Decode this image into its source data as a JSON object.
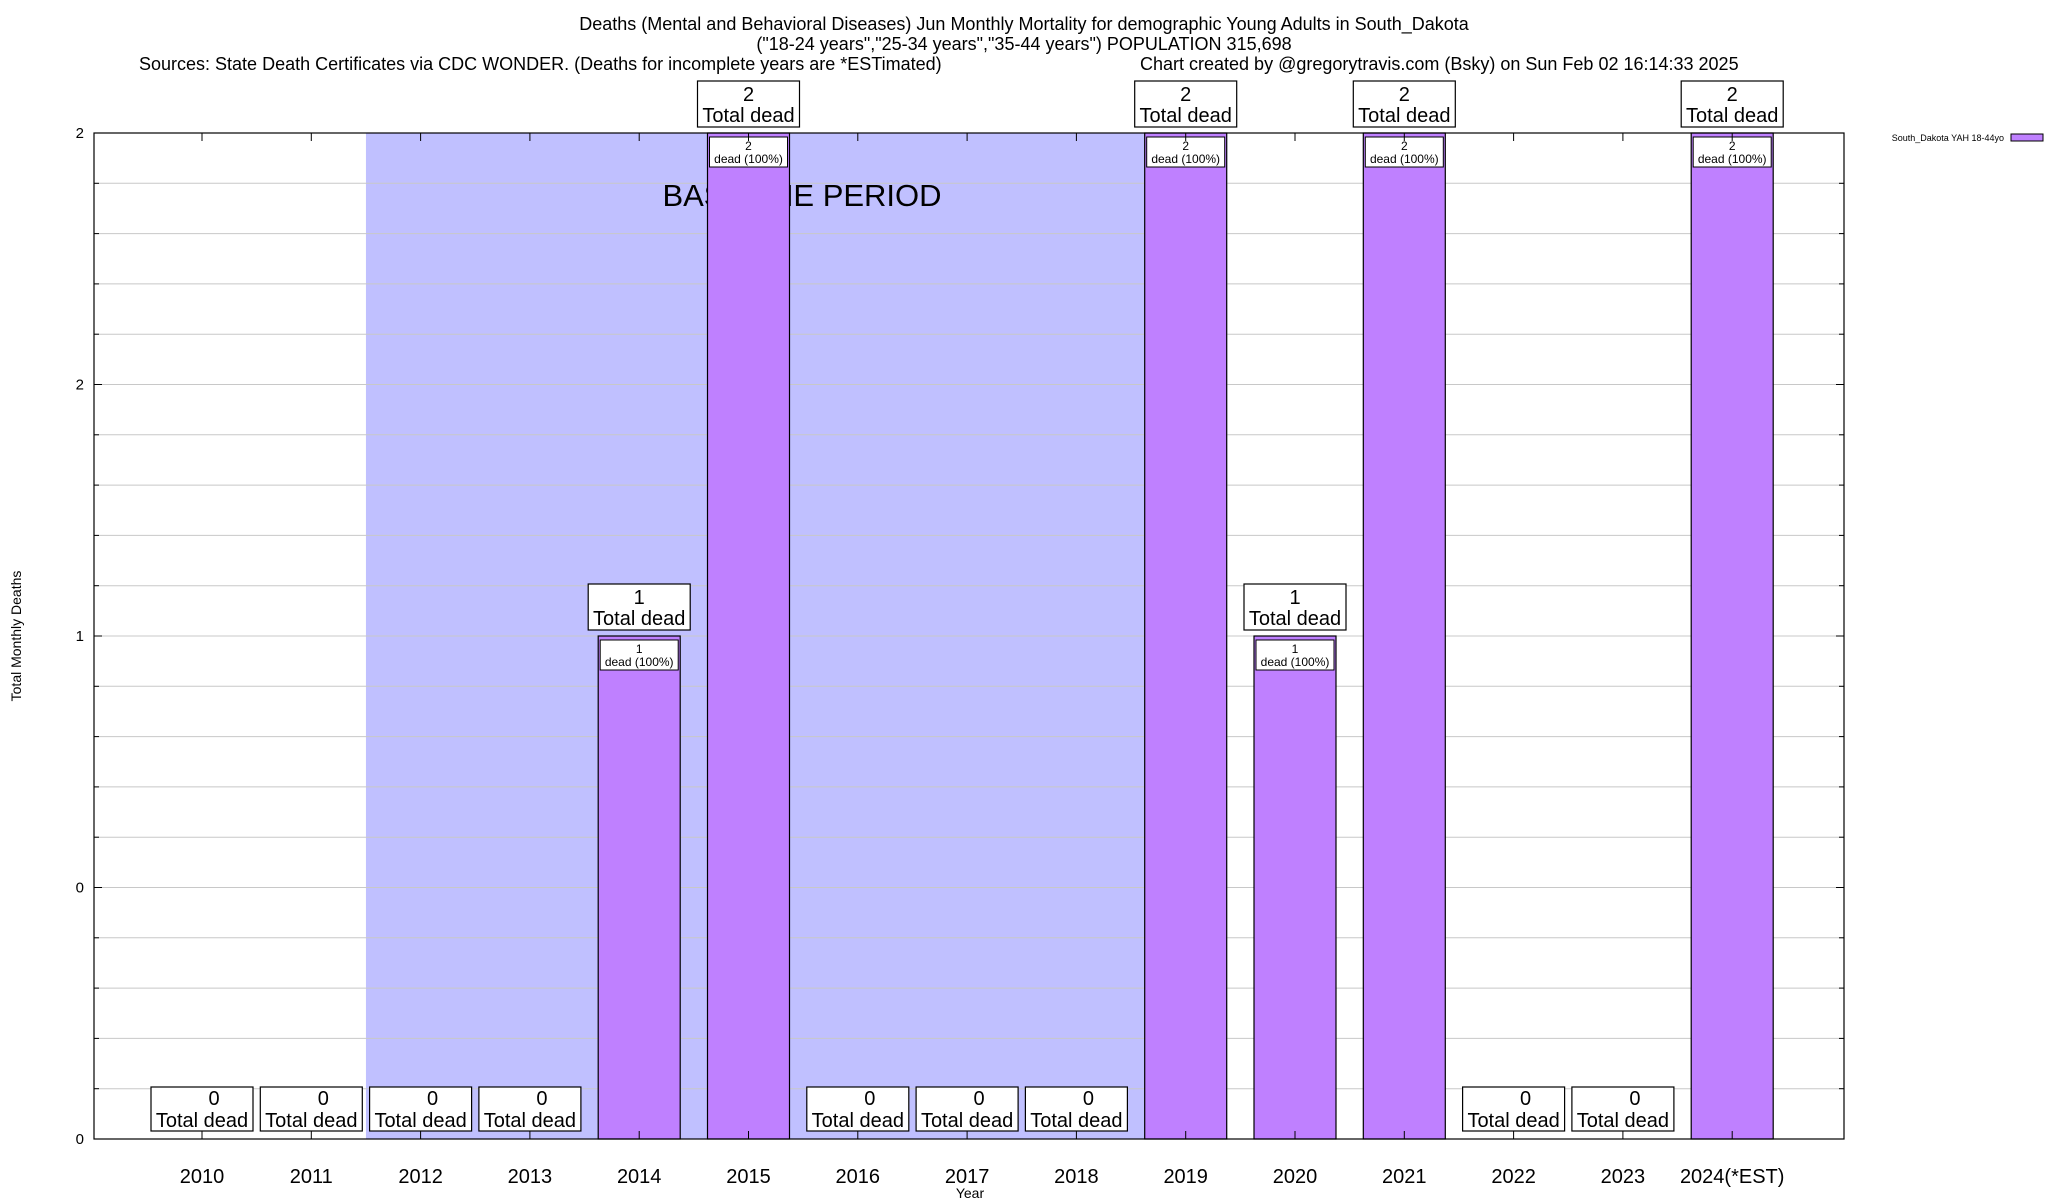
{
  "chart_data": {
    "type": "bar",
    "title": "Deaths (Mental and Behavioral Diseases) Jun Monthly Mortality for demographic Young Adults in South_Dakota",
    "subtitle": "(\"18-24 years\",\"25-34 years\",\"35-44 years\") POPULATION 315,698",
    "sources": "Sources: State Death Certificates via CDC WONDER. (Deaths for incomplete years are *ESTimated)",
    "credit": "Chart created by @gregorytravis.com (Bsky) on Sun Feb 02 16:14:33 2025",
    "xlabel": "Year",
    "ylabel": "Total Monthly Deaths",
    "categories": [
      "2010",
      "2011",
      "2012",
      "2013",
      "2014",
      "2015",
      "2016",
      "2017",
      "2018",
      "2019",
      "2020",
      "2021",
      "2022",
      "2023",
      "2024(*EST)"
    ],
    "series": [
      {
        "name": "South_Dakota YAH 18-44yo",
        "values": [
          0,
          0,
          0,
          0,
          1,
          2,
          0,
          0,
          0,
          2,
          1,
          2,
          0,
          0,
          2
        ],
        "color": "#bf80ff"
      }
    ],
    "ylim": [
      0,
      2
    ],
    "y_tick_labels": [
      "0",
      "0",
      "1",
      "2",
      "2"
    ],
    "grid": true,
    "legend_position": "top-right",
    "baseline_period": {
      "label": "BASELINE PERIOD",
      "from": "2012",
      "to": "2019",
      "color": "#c0c0ff"
    },
    "total_label_suffix": "Total dead",
    "bar_label_suffix": "dead (100%)"
  }
}
